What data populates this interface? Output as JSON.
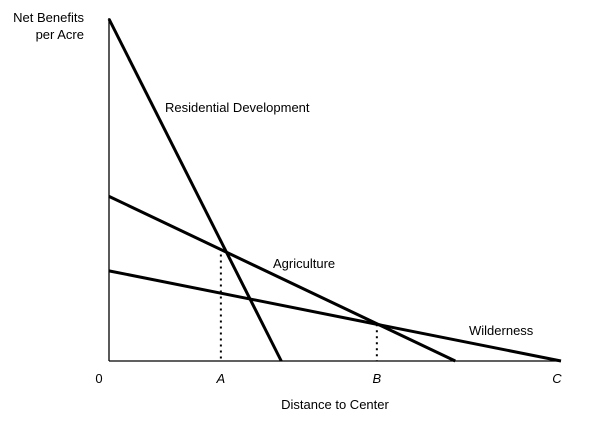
{
  "chart_data": {
    "type": "line",
    "ylabel_line1": "Net Benefits",
    "ylabel_line2": "per Acre",
    "xlabel": "Distance to Center",
    "x_ticks": [
      {
        "label": "0",
        "value": 0,
        "italic": false
      },
      {
        "label": "A",
        "value": 0.2475,
        "italic": true
      },
      {
        "label": "B",
        "value": 0.5926,
        "italic": true
      },
      {
        "label": "C",
        "value": 1.0,
        "italic": true
      }
    ],
    "xlim": [
      0,
      1.0
    ],
    "ylim": [
      0,
      1.0
    ],
    "series": [
      {
        "name": "Residential Development",
        "x": [
          0,
          0.3811
        ],
        "y": [
          1.0,
          0
        ]
      },
      {
        "name": "Agriculture",
        "x": [
          0,
          0.7661
        ],
        "y": [
          0.4814,
          0
        ]
      },
      {
        "name": "Wilderness",
        "x": [
          0,
          1.0
        ],
        "y": [
          0.2636,
          0
        ]
      }
    ],
    "dropdowns": [
      {
        "label": "A",
        "x": 0.2475,
        "y": 0.3114
      },
      {
        "label": "B",
        "x": 0.5926,
        "y": 0.1074
      }
    ]
  }
}
